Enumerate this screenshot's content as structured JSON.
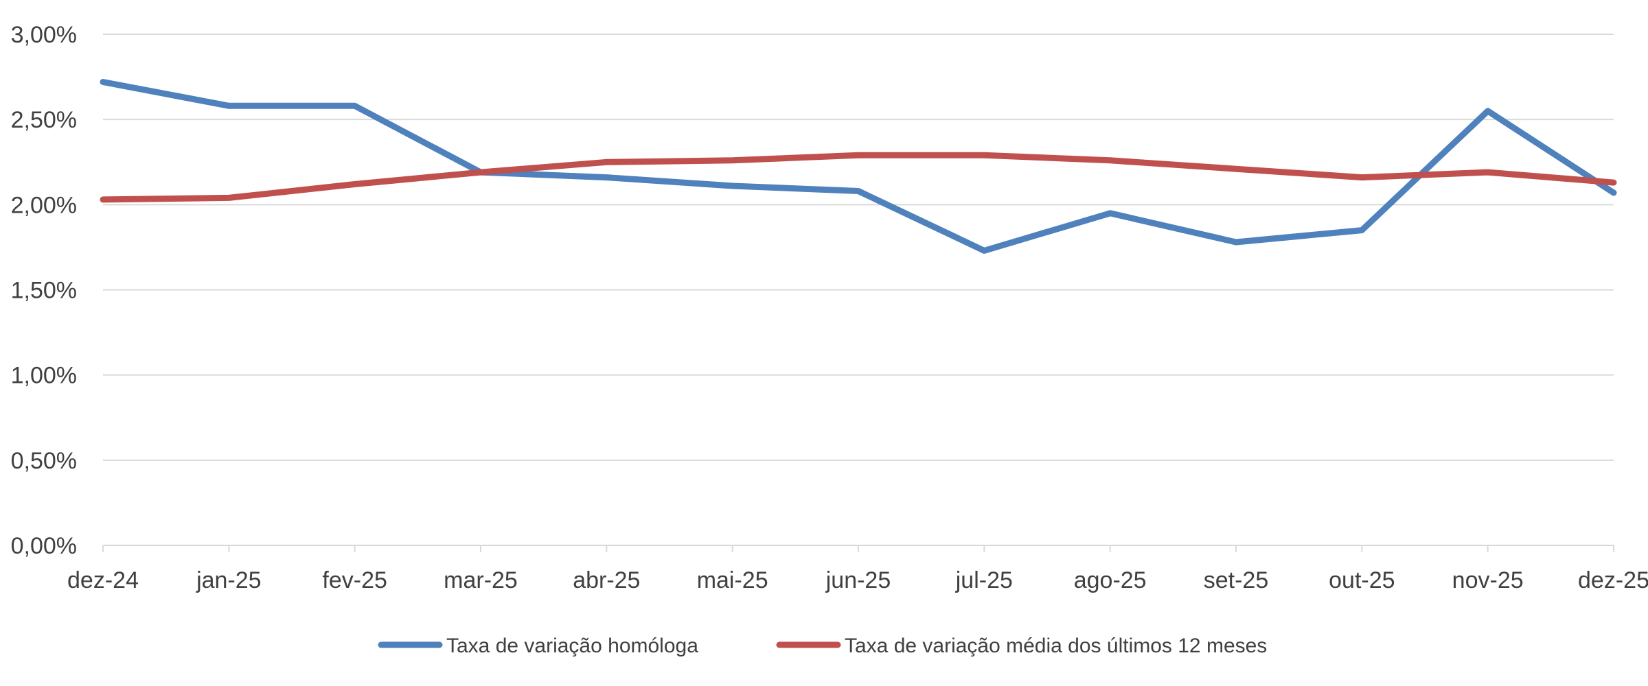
{
  "chart_data": {
    "type": "line",
    "title": "",
    "xlabel": "",
    "ylabel": "",
    "categories": [
      "dez-24",
      "jan-25",
      "fev-25",
      "mar-25",
      "abr-25",
      "mai-25",
      "jun-25",
      "jul-25",
      "ago-25",
      "set-25",
      "out-25",
      "nov-25",
      "dez-25"
    ],
    "y_ticks": [
      "0,00%",
      "0,50%",
      "1,00%",
      "1,50%",
      "2,00%",
      "2,50%",
      "3,00%"
    ],
    "ylim": [
      0,
      3
    ],
    "grid": true,
    "legend_position": "bottom",
    "series": [
      {
        "name": "Taxa de variação homóloga",
        "color": "#4f81bd",
        "values": [
          2.72,
          2.58,
          2.58,
          2.19,
          2.16,
          2.11,
          2.08,
          1.73,
          1.95,
          1.78,
          1.85,
          2.55,
          2.07
        ]
      },
      {
        "name": "Taxa de variação média dos últimos 12 meses",
        "color": "#c0504d",
        "values": [
          2.03,
          2.04,
          2.12,
          2.19,
          2.25,
          2.26,
          2.29,
          2.29,
          2.26,
          2.21,
          2.16,
          2.19,
          2.13
        ]
      }
    ]
  }
}
